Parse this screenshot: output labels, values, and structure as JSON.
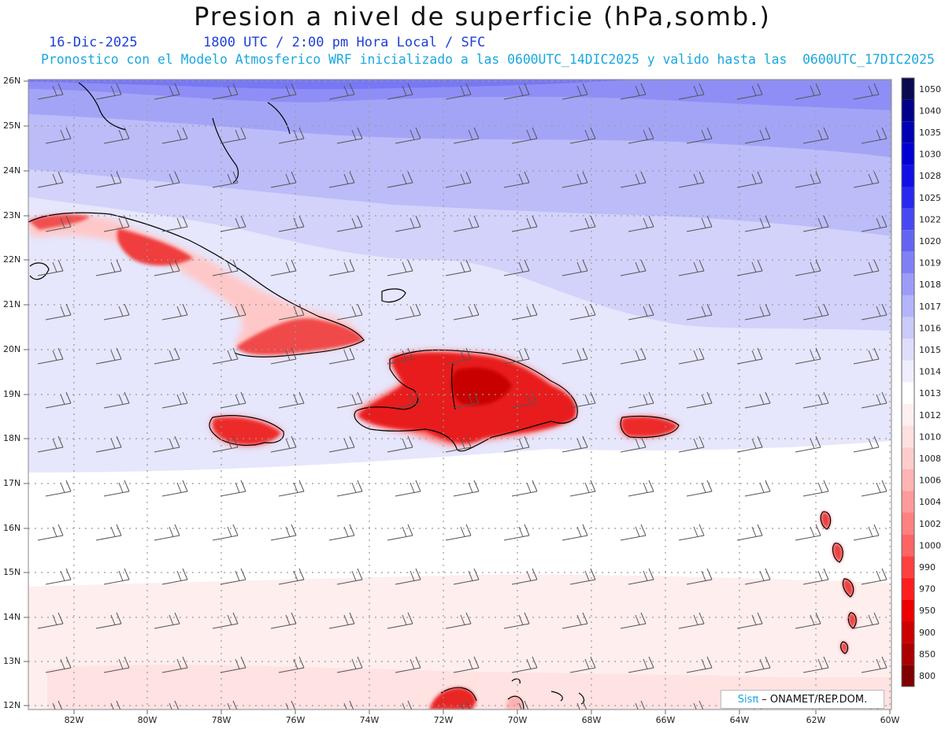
{
  "title": "Presion a nivel de superficie (hPa,somb.)",
  "subtitle": {
    "date": "16-Dic-2025",
    "time": "1800 UTC / 2:00 pm Hora Local / SFC",
    "model": "Pronostico con el Modelo Atmosferico WRF inicializado a las 0600UTC_14DIC2025 y valido hasta las  0600UTC_17DIC2025"
  },
  "map": {
    "lat_labels": [
      "26N",
      "25N",
      "24N",
      "23N",
      "22N",
      "21N",
      "20N",
      "19N",
      "18N",
      "17N",
      "16N",
      "15N",
      "14N",
      "13N",
      "12N"
    ],
    "lon_labels": [
      "82W",
      "80W",
      "78W",
      "76W",
      "74W",
      "72W",
      "70W",
      "68W",
      "66W",
      "64W",
      "62W",
      "60W"
    ],
    "grid": "dotted"
  },
  "colorbar": {
    "labels": [
      "1050",
      "1040",
      "1035",
      "1030",
      "1028",
      "1025",
      "1022",
      "1020",
      "1019",
      "1018",
      "1017",
      "1016",
      "1015",
      "1014",
      "1013",
      "1012",
      "1010",
      "1008",
      "1006",
      "1004",
      "1002",
      "1000",
      "990",
      "970",
      "950",
      "900",
      "850",
      "800"
    ],
    "colors": [
      "#0a0a50",
      "#00008a",
      "#0000b4",
      "#0000d2",
      "#1010e6",
      "#2828f0",
      "#4848f2",
      "#6464f4",
      "#8080f6",
      "#9c9cf8",
      "#b4b4fa",
      "#cacafb",
      "#dedefc",
      "#eeeefe",
      "#ffffff",
      "#fff0f0",
      "#ffe0e0",
      "#ffcccc",
      "#ffb4b4",
      "#ff9a9a",
      "#ff8080",
      "#ff6464",
      "#ff4040",
      "#ff1e1e",
      "#ee0000",
      "#cc0000",
      "#aa0000",
      "#800000"
    ]
  },
  "credit": {
    "brand": "Sisπ",
    "org": "– ONAMET/REP.DOM."
  }
}
